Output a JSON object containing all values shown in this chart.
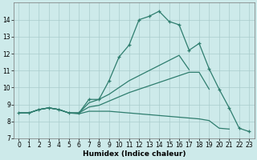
{
  "xlabel": "Humidex (Indice chaleur)",
  "x_values": [
    0,
    1,
    2,
    3,
    4,
    5,
    6,
    7,
    8,
    9,
    10,
    11,
    12,
    13,
    14,
    15,
    16,
    17,
    18,
    19,
    20,
    21,
    22,
    23
  ],
  "line1": [
    8.5,
    8.5,
    8.7,
    8.8,
    8.7,
    8.5,
    8.5,
    9.3,
    9.3,
    10.4,
    11.8,
    12.5,
    14.0,
    14.2,
    14.5,
    13.9,
    13.7,
    12.2,
    12.6,
    11.1,
    9.9,
    8.8,
    7.6,
    7.4
  ],
  "line2_x": [
    0,
    1,
    2,
    3,
    4,
    5,
    6,
    7,
    8,
    9,
    10,
    11,
    12,
    13,
    14,
    15,
    16,
    17,
    18,
    19
  ],
  "line2_y": [
    8.5,
    8.5,
    8.7,
    8.8,
    8.7,
    8.5,
    8.5,
    9.1,
    9.3,
    9.6,
    10.0,
    10.4,
    10.7,
    11.0,
    11.3,
    11.6,
    11.9,
    11.05,
    null,
    null
  ],
  "line3_x": [
    0,
    1,
    2,
    3,
    4,
    5,
    6,
    7,
    8,
    9,
    10,
    11,
    12,
    13,
    14,
    15,
    16,
    17,
    18,
    19,
    20,
    21,
    22,
    23
  ],
  "line3_y": [
    8.5,
    8.5,
    8.7,
    8.8,
    8.7,
    8.5,
    8.45,
    8.6,
    8.6,
    8.6,
    8.55,
    8.5,
    8.45,
    8.4,
    8.35,
    8.3,
    8.25,
    8.2,
    8.15,
    8.05,
    7.6,
    7.55,
    null,
    null
  ],
  "line4_x": [
    0,
    1,
    2,
    3,
    4,
    5,
    6,
    7,
    8,
    9,
    10,
    11,
    12,
    13,
    14,
    15,
    16,
    17,
    18,
    19,
    20
  ],
  "line4_y": [
    8.5,
    8.5,
    8.7,
    8.8,
    8.7,
    8.5,
    8.5,
    8.85,
    8.95,
    9.2,
    9.45,
    9.7,
    9.9,
    10.1,
    10.3,
    10.5,
    10.7,
    10.9,
    10.9,
    9.9,
    null
  ],
  "line_color": "#2e7d6e",
  "bg_color": "#cdeaea",
  "grid_color": "#aacccc",
  "ylim": [
    7,
    15
  ],
  "xlim": [
    -0.5,
    23.5
  ],
  "yticks": [
    7,
    8,
    9,
    10,
    11,
    12,
    13,
    14
  ],
  "xticks": [
    0,
    1,
    2,
    3,
    4,
    5,
    6,
    7,
    8,
    9,
    10,
    11,
    12,
    13,
    14,
    15,
    16,
    17,
    18,
    19,
    20,
    21,
    22,
    23
  ]
}
